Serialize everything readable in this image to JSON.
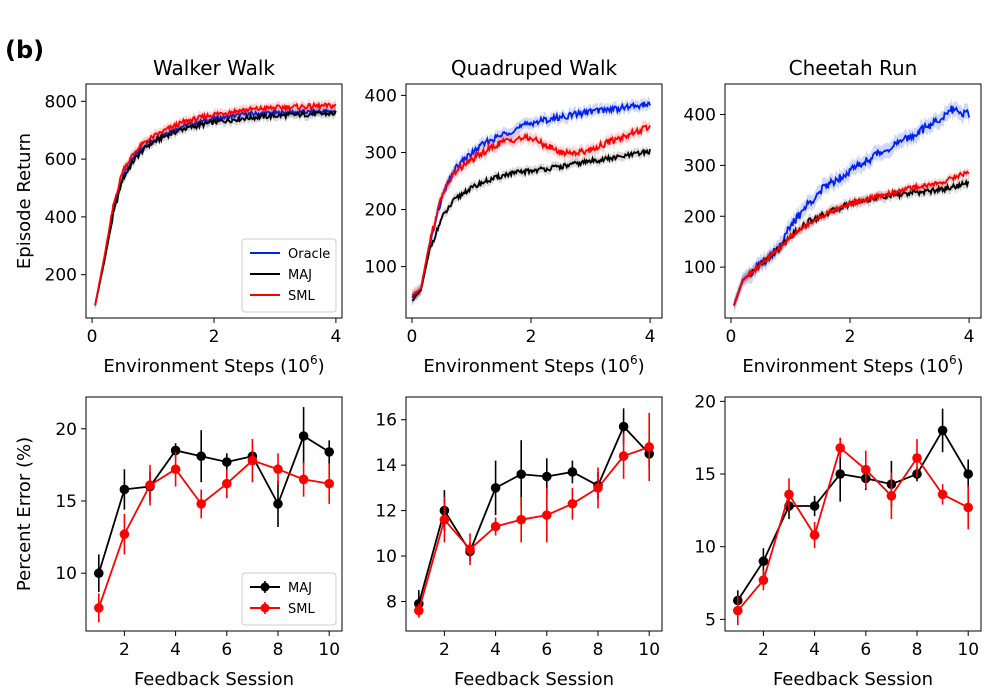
{
  "figure": {
    "panel_label": "(b)"
  },
  "colors": {
    "Oracle": "#0022ee",
    "MAJ": "#000000",
    "SML": "#ff0000"
  },
  "chart_data": [
    {
      "id": "walker",
      "type": "line",
      "title": "Walker Walk",
      "xlabel": "Environment Steps",
      "xlabel_exp": "6",
      "ylabel": "Episode Return",
      "xlim": [
        -0.1,
        4.1
      ],
      "ylim": [
        50,
        860
      ],
      "xticks": [
        0,
        2,
        4
      ],
      "yticks": [
        200,
        400,
        600,
        800
      ],
      "legend": {
        "position": "lower-right",
        "entries": [
          "Oracle",
          "MAJ",
          "SML"
        ]
      },
      "series": [
        {
          "name": "Oracle",
          "band": 14,
          "points": [
            [
              0.05,
              95
            ],
            [
              0.2,
              250
            ],
            [
              0.35,
              420
            ],
            [
              0.5,
              540
            ],
            [
              0.7,
              610
            ],
            [
              0.9,
              655
            ],
            [
              1.2,
              690
            ],
            [
              1.5,
              715
            ],
            [
              2.0,
              740
            ],
            [
              2.5,
              755
            ],
            [
              3.0,
              760
            ],
            [
              3.5,
              763
            ],
            [
              4.0,
              765
            ]
          ]
        },
        {
          "name": "MAJ",
          "band": 16,
          "points": [
            [
              0.05,
              95
            ],
            [
              0.2,
              245
            ],
            [
              0.35,
              410
            ],
            [
              0.5,
              530
            ],
            [
              0.7,
              600
            ],
            [
              0.9,
              645
            ],
            [
              1.2,
              680
            ],
            [
              1.5,
              705
            ],
            [
              2.0,
              728
            ],
            [
              2.5,
              742
            ],
            [
              3.0,
              750
            ],
            [
              3.5,
              755
            ],
            [
              4.0,
              758
            ]
          ]
        },
        {
          "name": "SML",
          "band": 16,
          "points": [
            [
              0.05,
              95
            ],
            [
              0.2,
              260
            ],
            [
              0.35,
              440
            ],
            [
              0.5,
              560
            ],
            [
              0.7,
              625
            ],
            [
              0.9,
              665
            ],
            [
              1.2,
              700
            ],
            [
              1.5,
              728
            ],
            [
              2.0,
              755
            ],
            [
              2.5,
              770
            ],
            [
              3.0,
              778
            ],
            [
              3.5,
              782
            ],
            [
              4.0,
              785
            ]
          ]
        }
      ]
    },
    {
      "id": "quadruped",
      "type": "line",
      "title": "Quadruped Walk",
      "xlabel": "Environment Steps",
      "xlabel_exp": "6",
      "ylabel": "",
      "xlim": [
        -0.1,
        4.2
      ],
      "ylim": [
        10,
        420
      ],
      "xticks": [
        0,
        2,
        4
      ],
      "yticks": [
        100,
        200,
        300,
        400
      ],
      "series": [
        {
          "name": "Oracle",
          "band": 10,
          "points": [
            [
              0.0,
              45
            ],
            [
              0.15,
              60
            ],
            [
              0.3,
              140
            ],
            [
              0.5,
              220
            ],
            [
              0.7,
              268
            ],
            [
              0.9,
              290
            ],
            [
              1.2,
              315
            ],
            [
              1.6,
              335
            ],
            [
              2.0,
              352
            ],
            [
              2.5,
              362
            ],
            [
              3.0,
              372
            ],
            [
              3.5,
              378
            ],
            [
              4.0,
              385
            ]
          ]
        },
        {
          "name": "MAJ",
          "band": 8,
          "points": [
            [
              0.0,
              40
            ],
            [
              0.15,
              58
            ],
            [
              0.3,
              130
            ],
            [
              0.5,
              185
            ],
            [
              0.7,
              215
            ],
            [
              0.9,
              232
            ],
            [
              1.2,
              248
            ],
            [
              1.6,
              262
            ],
            [
              2.0,
              268
            ],
            [
              2.5,
              275
            ],
            [
              3.0,
              285
            ],
            [
              3.5,
              292
            ],
            [
              4.0,
              302
            ]
          ]
        },
        {
          "name": "SML",
          "band": 10,
          "points": [
            [
              0.0,
              50
            ],
            [
              0.15,
              62
            ],
            [
              0.3,
              145
            ],
            [
              0.5,
              225
            ],
            [
              0.7,
              262
            ],
            [
              0.9,
              280
            ],
            [
              1.2,
              300
            ],
            [
              1.5,
              318
            ],
            [
              1.8,
              325
            ],
            [
              2.0,
              325
            ],
            [
              2.2,
              315
            ],
            [
              2.5,
              300
            ],
            [
              2.8,
              300
            ],
            [
              3.0,
              305
            ],
            [
              3.3,
              318
            ],
            [
              3.6,
              330
            ],
            [
              4.0,
              345
            ]
          ]
        }
      ]
    },
    {
      "id": "cheetah",
      "type": "line",
      "title": "Cheetah Run",
      "xlabel": "Environment Steps",
      "xlabel_exp": "6",
      "ylabel": "",
      "xlim": [
        -0.1,
        4.2
      ],
      "ylim": [
        0,
        460
      ],
      "xticks": [
        0,
        2,
        4
      ],
      "yticks": [
        100,
        200,
        300,
        400
      ],
      "series": [
        {
          "name": "Oracle",
          "band": 15,
          "points": [
            [
              0.05,
              25
            ],
            [
              0.2,
              75
            ],
            [
              0.5,
              105
            ],
            [
              0.8,
              140
            ],
            [
              1.0,
              180
            ],
            [
              1.3,
              225
            ],
            [
              1.6,
              260
            ],
            [
              2.0,
              290
            ],
            [
              2.5,
              325
            ],
            [
              3.0,
              355
            ],
            [
              3.5,
              390
            ],
            [
              3.7,
              410
            ],
            [
              4.0,
              400
            ]
          ]
        },
        {
          "name": "MAJ",
          "band": 10,
          "points": [
            [
              0.05,
              25
            ],
            [
              0.2,
              75
            ],
            [
              0.5,
              105
            ],
            [
              0.8,
              135
            ],
            [
              1.0,
              160
            ],
            [
              1.3,
              190
            ],
            [
              1.6,
              205
            ],
            [
              2.0,
              225
            ],
            [
              2.5,
              238
            ],
            [
              3.0,
              245
            ],
            [
              3.5,
              252
            ],
            [
              4.0,
              265
            ]
          ]
        },
        {
          "name": "SML",
          "band": 8,
          "points": [
            [
              0.05,
              25
            ],
            [
              0.2,
              75
            ],
            [
              0.5,
              105
            ],
            [
              0.8,
              135
            ],
            [
              1.0,
              160
            ],
            [
              1.3,
              185
            ],
            [
              1.6,
              205
            ],
            [
              2.0,
              225
            ],
            [
              2.5,
              240
            ],
            [
              3.0,
              255
            ],
            [
              3.5,
              265
            ],
            [
              4.0,
              288
            ]
          ]
        }
      ]
    },
    {
      "id": "walker_err",
      "type": "line",
      "title": "",
      "xlabel": "Feedback Session",
      "xlabel_exp": "",
      "ylabel": "Percent Error (%)",
      "xlim": [
        0.5,
        10.5
      ],
      "ylim": [
        6,
        22.2
      ],
      "xticks": [
        2,
        4,
        6,
        8,
        10
      ],
      "yticks": [
        10,
        15,
        20
      ],
      "legend": {
        "position": "lower-right",
        "entries": [
          "MAJ",
          "SML"
        ]
      },
      "series": [
        {
          "name": "MAJ",
          "x": [
            1,
            2,
            3,
            4,
            5,
            6,
            7,
            8,
            9,
            10
          ],
          "y": [
            10.0,
            15.8,
            16.0,
            18.5,
            18.1,
            17.7,
            18.1,
            14.8,
            19.5,
            18.4
          ],
          "err": [
            1.3,
            1.4,
            1.0,
            0.5,
            1.8,
            0.6,
            0.4,
            1.6,
            2.0,
            0.8
          ]
        },
        {
          "name": "SML",
          "x": [
            1,
            2,
            3,
            4,
            5,
            6,
            7,
            8,
            9,
            10
          ],
          "y": [
            7.6,
            12.7,
            16.1,
            17.2,
            14.8,
            16.2,
            17.8,
            17.2,
            16.5,
            16.2
          ],
          "err": [
            1.0,
            1.4,
            1.4,
            1.2,
            1.0,
            1.0,
            1.5,
            1.1,
            1.2,
            1.4
          ]
        }
      ]
    },
    {
      "id": "quadruped_err",
      "type": "line",
      "title": "",
      "xlabel": "Feedback Session",
      "xlabel_exp": "",
      "ylabel": "",
      "xlim": [
        0.5,
        10.5
      ],
      "ylim": [
        6.7,
        17.0
      ],
      "xticks": [
        2,
        4,
        6,
        8,
        10
      ],
      "yticks": [
        8,
        10,
        12,
        14,
        16
      ],
      "series": [
        {
          "name": "MAJ",
          "x": [
            1,
            2,
            3,
            4,
            5,
            6,
            7,
            8,
            9,
            10
          ],
          "y": [
            7.9,
            12.0,
            10.2,
            13.0,
            13.6,
            13.5,
            13.7,
            13.1,
            15.7,
            14.5
          ],
          "err": [
            0.6,
            0.9,
            0.4,
            1.2,
            1.5,
            0.8,
            0.5,
            0.6,
            0.8,
            0.6
          ]
        },
        {
          "name": "SML",
          "x": [
            1,
            2,
            3,
            4,
            5,
            6,
            7,
            8,
            9,
            10
          ],
          "y": [
            7.6,
            11.6,
            10.3,
            11.3,
            11.6,
            11.8,
            12.3,
            13.0,
            14.4,
            14.8
          ],
          "err": [
            0.3,
            1.0,
            0.7,
            0.4,
            1.0,
            1.2,
            0.7,
            0.9,
            1.0,
            1.5
          ]
        }
      ]
    },
    {
      "id": "cheetah_err",
      "type": "line",
      "title": "",
      "xlabel": "Feedback Session",
      "xlabel_exp": "",
      "ylabel": "",
      "xlim": [
        0.5,
        10.5
      ],
      "ylim": [
        4.2,
        20.3
      ],
      "xticks": [
        2,
        4,
        6,
        8,
        10
      ],
      "yticks": [
        5,
        10,
        15,
        20
      ],
      "series": [
        {
          "name": "MAJ",
          "x": [
            1,
            2,
            3,
            4,
            5,
            6,
            7,
            8,
            9,
            10
          ],
          "y": [
            6.3,
            9.0,
            12.8,
            12.8,
            15.0,
            14.7,
            14.3,
            15.0,
            18.0,
            15.0
          ],
          "err": [
            0.7,
            0.9,
            0.9,
            0.7,
            1.9,
            0.8,
            1.6,
            0.5,
            1.5,
            1.0
          ]
        },
        {
          "name": "SML",
          "x": [
            1,
            2,
            3,
            4,
            5,
            6,
            7,
            8,
            9,
            10
          ],
          "y": [
            5.6,
            7.7,
            13.6,
            10.8,
            16.8,
            15.3,
            13.5,
            16.1,
            13.6,
            12.7
          ],
          "err": [
            1.0,
            0.7,
            1.1,
            0.9,
            0.7,
            1.3,
            1.6,
            1.3,
            0.7,
            1.5
          ]
        }
      ]
    }
  ]
}
